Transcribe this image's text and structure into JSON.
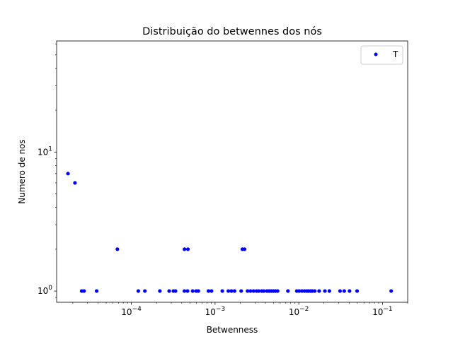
{
  "chart_data": {
    "type": "scatter",
    "title": "Distribuição do betwennes dos nós",
    "xlabel": "Betwenness",
    "ylabel": "Numero de nos",
    "xscale": "log",
    "yscale": "log",
    "xlim": [
      1.28e-05,
      0.2
    ],
    "ylim": [
      0.83,
      63
    ],
    "xticks": [
      {
        "value": 0.0001,
        "base": "10",
        "exp": "−4"
      },
      {
        "value": 0.001,
        "base": "10",
        "exp": "−3"
      },
      {
        "value": 0.01,
        "base": "10",
        "exp": "−2"
      },
      {
        "value": 0.1,
        "base": "10",
        "exp": "−1"
      }
    ],
    "yticks": [
      {
        "value": 1,
        "base": "10",
        "exp": "0"
      },
      {
        "value": 10,
        "base": "10",
        "exp": "1"
      }
    ],
    "grid": false,
    "legend_position": "top-right",
    "marker_color": "#0000ff",
    "series": [
      {
        "name": "T",
        "points": [
          [
            1.75e-05,
            7
          ],
          [
            2.12e-05,
            6
          ],
          [
            2.55e-05,
            1
          ],
          [
            2.72e-05,
            1
          ],
          [
            3.85e-05,
            1
          ],
          [
            6.81e-05,
            2
          ],
          [
            0.000121,
            1
          ],
          [
            0.000145,
            1
          ],
          [
            0.000219,
            1
          ],
          [
            0.000283,
            1
          ],
          [
            0.000318,
            1
          ],
          [
            0.000337,
            1
          ],
          [
            0.000431,
            2
          ],
          [
            0.00043,
            1
          ],
          [
            0.000474,
            2
          ],
          [
            0.000469,
            1
          ],
          [
            0.00054,
            1
          ],
          [
            0.000595,
            1
          ],
          [
            0.000631,
            1
          ],
          [
            0.000834,
            1
          ],
          [
            0.000907,
            1
          ],
          [
            0.00122,
            1
          ],
          [
            0.00144,
            1
          ],
          [
            0.00157,
            1
          ],
          [
            0.00171,
            1
          ],
          [
            0.00205,
            1
          ],
          [
            0.00212,
            2
          ],
          [
            0.00225,
            2
          ],
          [
            0.00244,
            1
          ],
          [
            0.00265,
            1
          ],
          [
            0.00288,
            1
          ],
          [
            0.00313,
            1
          ],
          [
            0.00333,
            1
          ],
          [
            0.00362,
            1
          ],
          [
            0.00383,
            1
          ],
          [
            0.00417,
            1
          ],
          [
            0.00442,
            1
          ],
          [
            0.00469,
            1
          ],
          [
            0.00497,
            1
          ],
          [
            0.00527,
            1
          ],
          [
            0.00559,
            1
          ],
          [
            0.00742,
            1
          ],
          [
            0.00947,
            1
          ],
          [
            0.0101,
            1
          ],
          [
            0.0109,
            1
          ],
          [
            0.0117,
            1
          ],
          [
            0.0125,
            1
          ],
          [
            0.0131,
            1
          ],
          [
            0.0139,
            1
          ],
          [
            0.0145,
            1
          ],
          [
            0.0155,
            1
          ],
          [
            0.0175,
            1
          ],
          [
            0.0205,
            1
          ],
          [
            0.0232,
            1
          ],
          [
            0.0311,
            1
          ],
          [
            0.0349,
            1
          ],
          [
            0.0404,
            1
          ],
          [
            0.0497,
            1
          ],
          [
            0.127,
            1
          ]
        ]
      }
    ]
  }
}
